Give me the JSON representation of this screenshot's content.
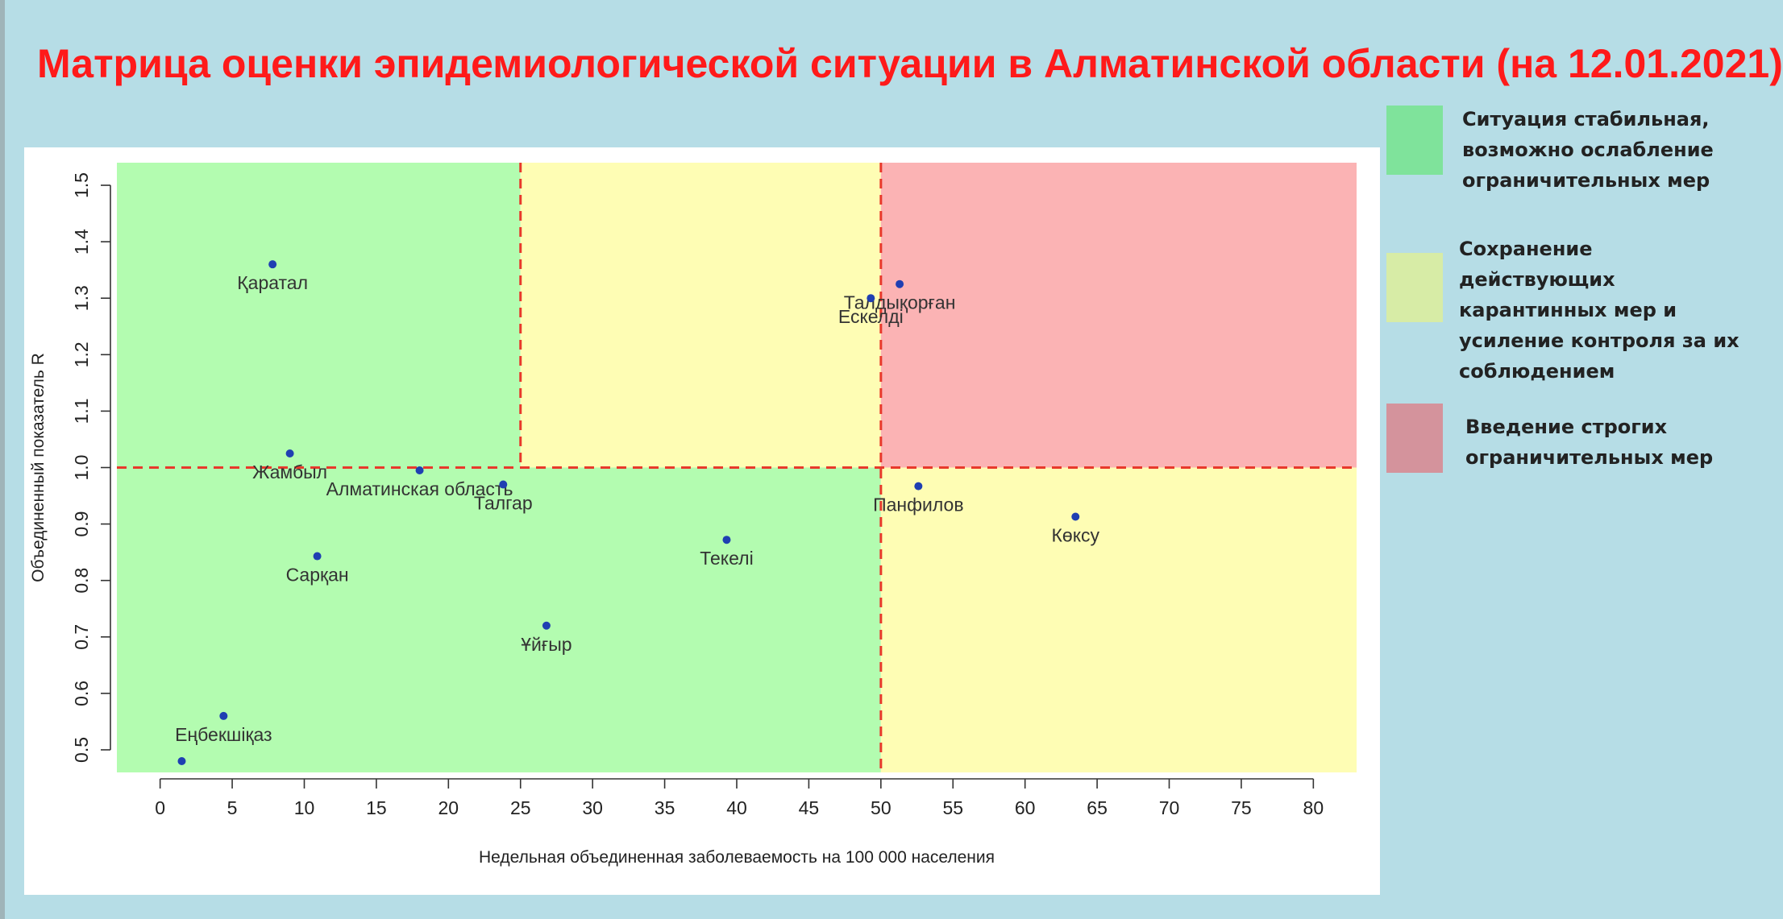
{
  "title": "Матрица оценки эпидемиологической ситуации в Алматинской области (на 12.01.2021)",
  "legend": [
    {
      "text": "Ситуация стабильная,\nвозможно ослабление\nограничительных мер",
      "color": "#7fe39b"
    },
    {
      "text": "Сохранение\nдействующих\nкарантинных мер и\nусиление контроля за их\nсоблюдением",
      "color": "#d7eca6"
    },
    {
      "text": "Введение строгих\nограничительных мер",
      "color": "#d4939c"
    }
  ],
  "chart_data": {
    "type": "scatter",
    "title": "",
    "xlabel": "Недельная объединенная заболеваемость на 100 000 населения",
    "ylabel": "Объединенный показатель R",
    "xlim": [
      -3,
      83
    ],
    "ylim": [
      0.46,
      1.54
    ],
    "xticks": [
      0,
      5,
      10,
      15,
      20,
      25,
      30,
      35,
      40,
      45,
      50,
      55,
      60,
      65,
      70,
      75,
      80
    ],
    "yticks": [
      0.5,
      0.6,
      0.7,
      0.8,
      0.9,
      1.0,
      1.1,
      1.2,
      1.3,
      1.4,
      1.5
    ],
    "thresholds": {
      "x": [
        25,
        50
      ],
      "y": 1.0
    },
    "zone_colors": {
      "green": "#b3fcb0",
      "yellow": "#fefdb4",
      "red": "#fbb3b4"
    },
    "point_color": "#1f3fb2",
    "threshold_color": "#e8392b",
    "points": [
      {
        "label": "Қаратал",
        "x": 7.8,
        "y": 1.36
      },
      {
        "label": "Талдықорған",
        "x": 51.3,
        "y": 1.325
      },
      {
        "label": "Ескелді",
        "x": 49.3,
        "y": 1.3
      },
      {
        "label": "Жамбыл",
        "x": 9.0,
        "y": 1.025
      },
      {
        "label": "Алматинская область",
        "x": 18.0,
        "y": 0.995
      },
      {
        "label": "Талгар",
        "x": 23.8,
        "y": 0.97
      },
      {
        "label": "Панфилов",
        "x": 52.6,
        "y": 0.967
      },
      {
        "label": "Көксу",
        "x": 63.5,
        "y": 0.913
      },
      {
        "label": "Текелі",
        "x": 39.3,
        "y": 0.872
      },
      {
        "label": "Сарқан",
        "x": 10.9,
        "y": 0.843
      },
      {
        "label": "Ұйғыр",
        "x": 26.8,
        "y": 0.72
      },
      {
        "label": "Еңбекшіқаз",
        "x": 4.4,
        "y": 0.56
      },
      {
        "label": "",
        "x": 1.5,
        "y": 0.48
      }
    ]
  }
}
